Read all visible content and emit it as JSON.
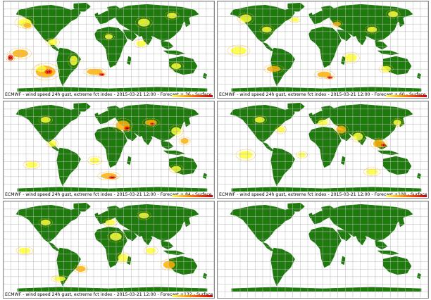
{
  "colors": {
    "land": "#1f7a0d",
    "ocean": "#ffffff",
    "grid": "#b9b9b9",
    "index_low": "#ffff33",
    "index_mid": "#ffb000",
    "index_high": "#ff3300",
    "index_max": "#b00000"
  },
  "panels": [
    {
      "caption": "ECMWF - wind speed 24h gust, extreme fct index - 2015-03-21 12:00 - Forecast + 36 - Surface",
      "lead_hours": 36,
      "has_anomalies": true
    },
    {
      "caption": "ECMWF - wind speed 24h gust, extreme fct index - 2015-03-21 12:00 - Forecast + 60 - Surface",
      "lead_hours": 60,
      "has_anomalies": true
    },
    {
      "caption": "ECMWF - wind speed 24h gust, extreme fct index - 2015-03-21 12:00 - Forecast + 84 - Surface",
      "lead_hours": 84,
      "has_anomalies": true
    },
    {
      "caption": "ECMWF - wind speed 24h gust, extreme fct index - 2015-03-21 12:00 - Forecast +108 - Surface",
      "lead_hours": 108,
      "has_anomalies": true
    },
    {
      "caption": "ECMWF - wind speed 24h gust, extreme fct index - 2015-03-21 12:00 - Forecast +132 - Surface",
      "lead_hours": 132,
      "has_anomalies": true
    },
    {
      "caption": "",
      "lead_hours": null,
      "has_anomalies": false
    }
  ]
}
